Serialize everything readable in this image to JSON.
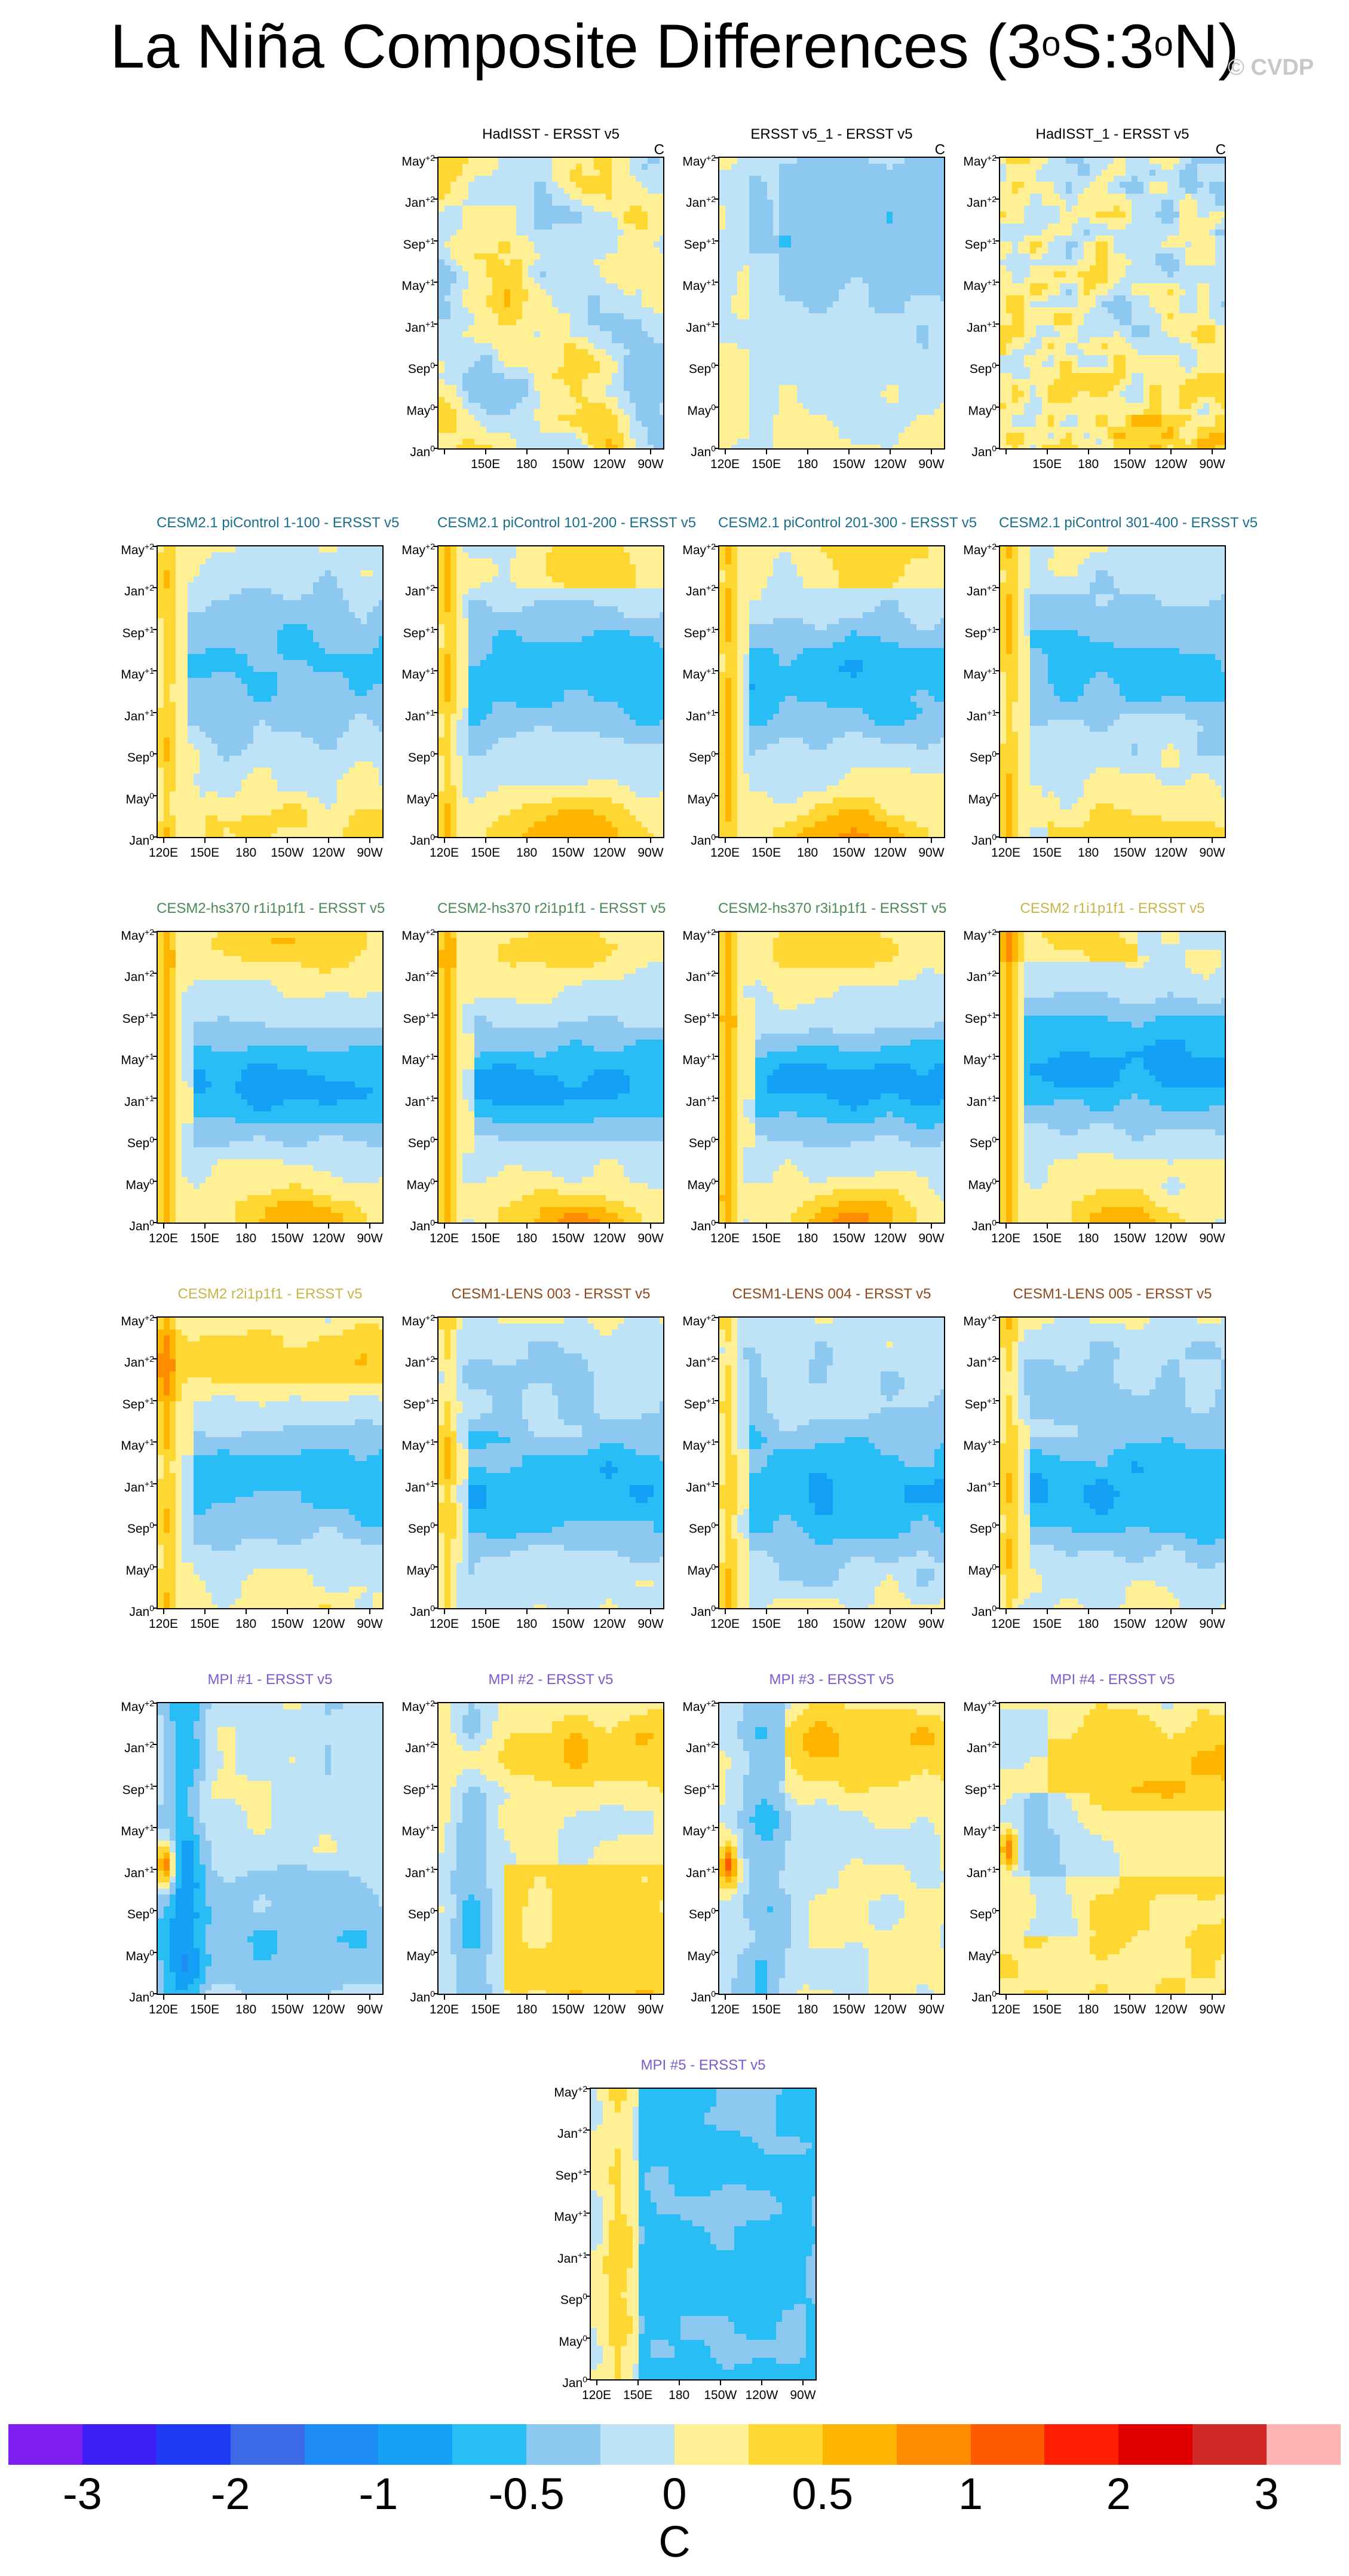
{
  "figure": {
    "title_main": "La Niña Composite Differences (3",
    "title_sup1": "o",
    "title_mid": "S:3",
    "title_sup2": "o",
    "title_end": "N)",
    "watermark": "© CVDP",
    "colorbar_unit": "C"
  },
  "chart_data": {
    "type": "heatmap",
    "variable": "SST composite difference, 3°S:3°N average",
    "unit": "C",
    "x_ticks": [
      "120E",
      "150E",
      "180",
      "150W",
      "120W",
      "90W"
    ],
    "x_range_lon": [
      115,
      280
    ],
    "y_ticks": [
      {
        "base": "Jan",
        "sup": "0"
      },
      {
        "base": "May",
        "sup": "0"
      },
      {
        "base": "Sep",
        "sup": "0"
      },
      {
        "base": "Jan",
        "sup": "+1"
      },
      {
        "base": "May",
        "sup": "+1"
      },
      {
        "base": "Sep",
        "sup": "+1"
      },
      {
        "base": "Jan",
        "sup": "+2"
      },
      {
        "base": "May",
        "sup": "+2"
      }
    ],
    "levels": [
      "-3",
      "-2",
      "-1",
      "-0.5",
      "0",
      "0.5",
      "1",
      "2",
      "3"
    ],
    "colors": [
      "#7f1ef0",
      "#3c1ef5",
      "#1e3cf5",
      "#3c69e6",
      "#1e8cf5",
      "#14a0f5",
      "#28bef5",
      "#8cc8f0",
      "#bfe3f6",
      "#fff096",
      "#ffd732",
      "#ffb400",
      "#ff8c00",
      "#ff5a00",
      "#ff1e00",
      "#e10000",
      "#d22828",
      "#ffb4b4"
    ],
    "panels": [
      {
        "title": "HadISST - ERSST v5",
        "unit": "C",
        "title_color": "#000000",
        "pattern": "obs_mixed",
        "xlabels_from": 1
      },
      {
        "title": "ERSST v5_1 - ERSST v5",
        "unit": "C",
        "title_color": "#000000",
        "pattern": "obs_smooth",
        "xlabels_from": 0
      },
      {
        "title": "HadISST_1 - ERSST v5",
        "unit": "C",
        "title_color": "#000000",
        "pattern": "obs_noisy",
        "xlabels_from": 1
      },
      {
        "title": "CESM2.1 piControl 1-100 - ERSST v5",
        "title_color": "#1a6e8c",
        "pattern": "cesm21_a",
        "xlabels_from": 0
      },
      {
        "title": "CESM2.1 piControl 101-200 - ERSST v5",
        "title_color": "#1a6e8c",
        "pattern": "cesm21_b",
        "xlabels_from": 0
      },
      {
        "title": "CESM2.1 piControl 201-300 - ERSST v5",
        "title_color": "#1a6e8c",
        "pattern": "cesm21_b",
        "xlabels_from": 0
      },
      {
        "title": "CESM2.1 piControl 301-400 - ERSST v5",
        "title_color": "#1a6e8c",
        "pattern": "cesm21_a",
        "xlabels_from": 0
      },
      {
        "title": "CESM2-hs370 r1i1p1f1 - ERSST v5",
        "title_color": "#4a8a5a",
        "pattern": "hs370",
        "xlabels_from": 0
      },
      {
        "title": "CESM2-hs370 r2i1p1f1 - ERSST v5",
        "title_color": "#4a8a5a",
        "pattern": "hs370",
        "xlabels_from": 0
      },
      {
        "title": "CESM2-hs370 r3i1p1f1 - ERSST v5",
        "title_color": "#4a8a5a",
        "pattern": "hs370",
        "xlabels_from": 0
      },
      {
        "title": "CESM2 r1i1p1f1 - ERSST v5",
        "title_color": "#c8b44a",
        "pattern": "cesm2_r",
        "xlabels_from": 0
      },
      {
        "title": "CESM2 r2i1p1f1 - ERSST v5",
        "title_color": "#c8b44a",
        "pattern": "cesm2_r2",
        "xlabels_from": 0
      },
      {
        "title": "CESM1-LENS 003 - ERSST v5",
        "title_color": "#8c4a1e",
        "pattern": "lens",
        "xlabels_from": 0
      },
      {
        "title": "CESM1-LENS 004 - ERSST v5",
        "title_color": "#8c4a1e",
        "pattern": "lens",
        "xlabels_from": 0
      },
      {
        "title": "CESM1-LENS 005 - ERSST v5",
        "title_color": "#8c4a1e",
        "pattern": "lens",
        "xlabels_from": 0
      },
      {
        "title": "MPI #1 - ERSST v5",
        "title_color": "#7a5acc",
        "pattern": "mpi1",
        "xlabels_from": 0
      },
      {
        "title": "MPI #2 - ERSST v5",
        "title_color": "#7a5acc",
        "pattern": "mpi2",
        "xlabels_from": 0
      },
      {
        "title": "MPI #3 - ERSST v5",
        "title_color": "#7a5acc",
        "pattern": "mpi3",
        "xlabels_from": 0
      },
      {
        "title": "MPI #4 - ERSST v5",
        "title_color": "#7a5acc",
        "pattern": "mpi4",
        "xlabels_from": 0
      },
      {
        "title": "MPI #5 - ERSST v5",
        "title_color": "#7a5acc",
        "pattern": "mpi5",
        "xlabels_from": 0
      }
    ]
  }
}
